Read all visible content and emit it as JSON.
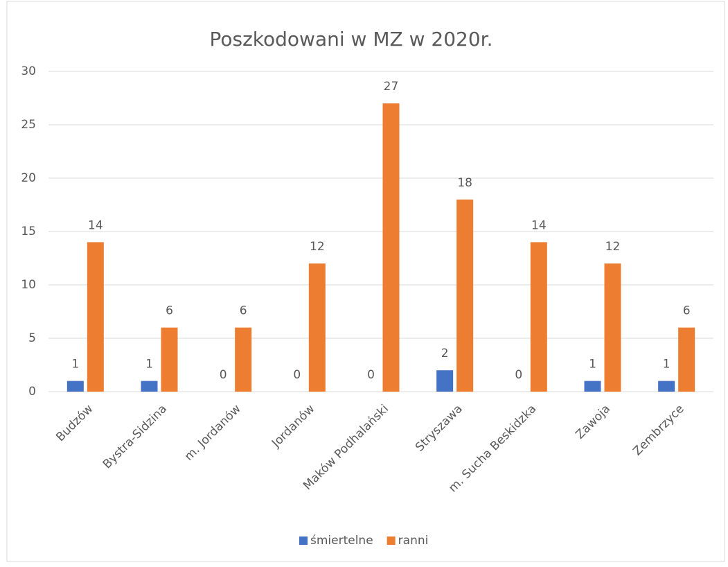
{
  "chart_data": {
    "type": "bar",
    "title": "Poszkodowani w MZ w 2020r.",
    "categories": [
      "Budzów",
      "Bystra-Sidzina",
      "m. Jordanów",
      "Jordanów",
      "Maków Podhalański",
      "Stryszawa",
      "m. Sucha Beskidzka",
      "Zawoja",
      "Zembrzyce"
    ],
    "series": [
      {
        "name": "śmiertelne",
        "color": "#4472c4",
        "values": [
          1,
          1,
          0,
          0,
          0,
          2,
          0,
          1,
          1
        ]
      },
      {
        "name": "ranni",
        "color": "#ed7d31",
        "values": [
          14,
          6,
          6,
          12,
          27,
          18,
          14,
          12,
          6
        ]
      }
    ],
    "ylim": [
      0,
      30
    ],
    "yticks": [
      0,
      5,
      10,
      15,
      20,
      25,
      30
    ],
    "grid": true,
    "legend": "bottom"
  }
}
